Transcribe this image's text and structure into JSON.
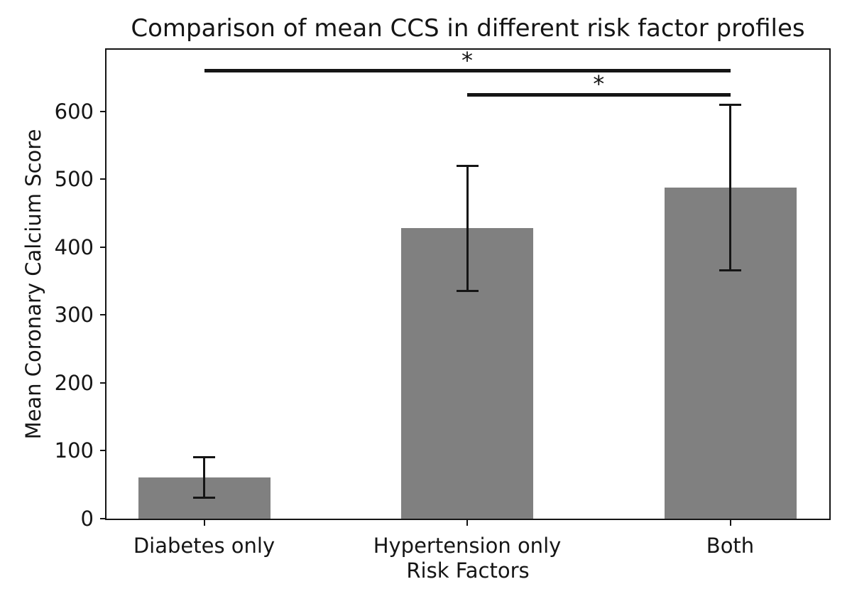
{
  "chart_data": {
    "type": "bar",
    "title": "Comparison of mean CCS in different risk factor profiles",
    "xlabel": "Risk Factors",
    "ylabel": "Mean Coronary Calcium Score",
    "categories": [
      "Diabetes only",
      "Hypertension only",
      "Both"
    ],
    "values": [
      61,
      428,
      488
    ],
    "error_bars": [
      30,
      92,
      122
    ],
    "yticks": [
      0,
      100,
      200,
      300,
      400,
      500,
      600
    ],
    "ylim": [
      0,
      691
    ],
    "grid": false,
    "legend_position": "none",
    "bar_color": "#808080",
    "axis_color": "#151515",
    "significance_markers": [
      {
        "from_category": "Diabetes only",
        "to_category": "Both",
        "from_index": 0,
        "to_index": 2,
        "y": 660,
        "label": "*"
      },
      {
        "from_category": "Hypertension only",
        "to_category": "Both",
        "from_index": 1,
        "to_index": 2,
        "y": 625,
        "label": "*"
      }
    ]
  }
}
